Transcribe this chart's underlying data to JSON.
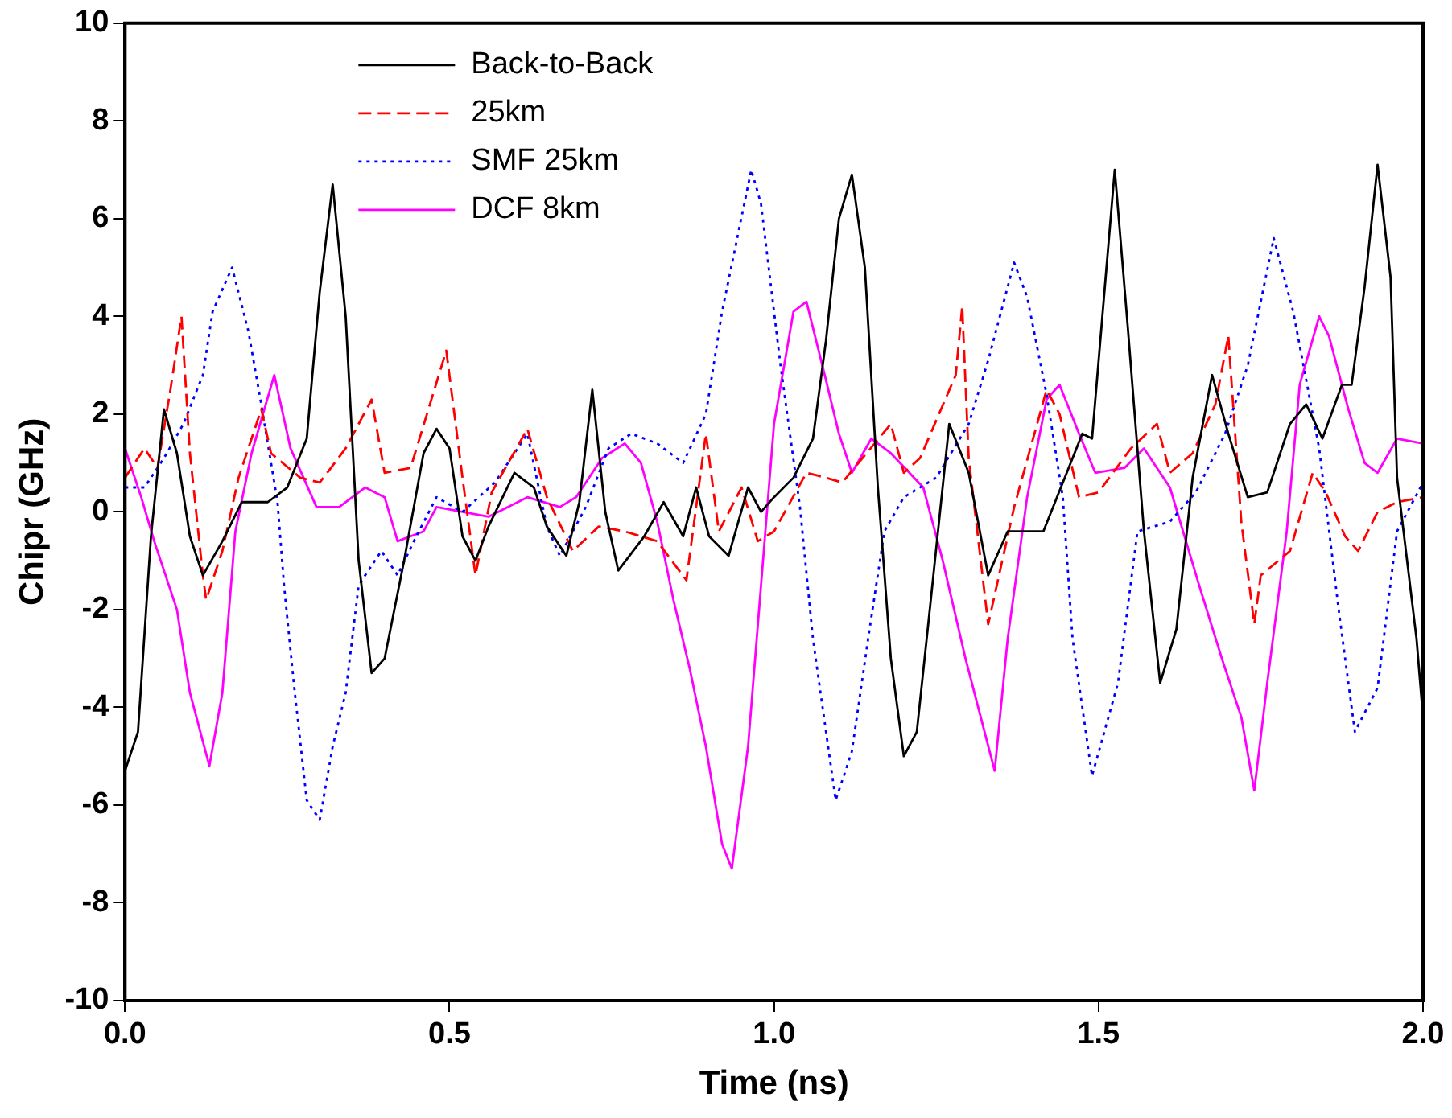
{
  "chart_data": {
    "type": "line",
    "xlabel": "Time (ns)",
    "ylabel": "Chipr (GHz)",
    "xlim": [
      0,
      2
    ],
    "ylim": [
      -10,
      10
    ],
    "xticks": [
      {
        "value": 0,
        "label": "0.0"
      },
      {
        "value": 0.5,
        "label": "0.5"
      },
      {
        "value": 1,
        "label": "1.0"
      },
      {
        "value": 1.5,
        "label": "1.5"
      },
      {
        "value": 2,
        "label": "2.0"
      }
    ],
    "yticks": [
      -10,
      -8,
      -6,
      -4,
      -2,
      0,
      2,
      4,
      6,
      8,
      10
    ],
    "grid": false,
    "legend": "top left",
    "marker": "none",
    "series": [
      {
        "name": "Back-to-Back",
        "color": "#000000",
        "line_style": "solid",
        "x": [
          0,
          0.02,
          0.04,
          0.06,
          0.08,
          0.1,
          0.12,
          0.15,
          0.18,
          0.22,
          0.25,
          0.28,
          0.3,
          0.32,
          0.34,
          0.36,
          0.38,
          0.4,
          0.43,
          0.46,
          0.48,
          0.5,
          0.52,
          0.54,
          0.56,
          0.6,
          0.63,
          0.65,
          0.68,
          0.7,
          0.72,
          0.74,
          0.76,
          0.8,
          0.83,
          0.86,
          0.88,
          0.9,
          0.93,
          0.96,
          0.98,
          1.0,
          1.03,
          1.06,
          1.08,
          1.1,
          1.12,
          1.14,
          1.16,
          1.18,
          1.2,
          1.22,
          1.24,
          1.27,
          1.3,
          1.33,
          1.36,
          1.415,
          1.475,
          1.49,
          1.525,
          1.545,
          1.57,
          1.595,
          1.62,
          1.645,
          1.675,
          1.7,
          1.73,
          1.76,
          1.795,
          1.82,
          1.845,
          1.875,
          1.89,
          1.91,
          1.93,
          1.95,
          1.96,
          1.99,
          2.0
        ],
        "values": [
          -5.3,
          -4.5,
          -0.5,
          2.1,
          1.2,
          -0.5,
          -1.3,
          -0.6,
          0.2,
          0.2,
          0.5,
          1.5,
          4.5,
          6.7,
          4,
          -1,
          -3.3,
          -3,
          -1,
          1.2,
          1.7,
          1.3,
          -0.5,
          -1,
          -0.3,
          0.8,
          0.5,
          -0.3,
          -0.9,
          0.2,
          2.5,
          0,
          -1.2,
          -0.5,
          0.2,
          -0.5,
          0.5,
          -0.5,
          -0.9,
          0.5,
          0,
          0.3,
          0.7,
          1.5,
          3.5,
          6,
          6.9,
          5,
          0.5,
          -3,
          -5,
          -4.5,
          -2,
          1.8,
          0.8,
          -1.3,
          -0.4,
          -0.4,
          1.6,
          1.5,
          7,
          3.8,
          -0.4,
          -3.5,
          -2.4,
          0.7,
          2.8,
          1.6,
          0.3,
          0.4,
          1.8,
          2.2,
          1.5,
          2.6,
          2.6,
          4.6,
          7.1,
          4.8,
          0.7,
          -2.6,
          -4.2
        ]
      },
      {
        "name": "25km",
        "color": "#ff0000",
        "line_style": "dashed",
        "x": [
          0,
          0.03,
          0.05,
          0.07,
          0.087,
          0.1,
          0.12,
          0.125,
          0.15,
          0.175,
          0.21,
          0.225,
          0.27,
          0.3,
          0.34,
          0.38,
          0.4,
          0.44,
          0.495,
          0.52,
          0.54,
          0.565,
          0.62,
          0.65,
          0.69,
          0.73,
          0.77,
          0.82,
          0.865,
          0.895,
          0.915,
          0.95,
          0.975,
          1.0,
          1.05,
          1.08,
          1.105,
          1.18,
          1.2,
          1.225,
          1.28,
          1.29,
          1.3,
          1.33,
          1.37,
          1.42,
          1.44,
          1.47,
          1.5,
          1.55,
          1.59,
          1.61,
          1.645,
          1.68,
          1.7,
          1.72,
          1.74,
          1.75,
          1.795,
          1.83,
          1.85,
          1.88,
          1.9,
          1.93,
          1.96,
          2.0
        ],
        "values": [
          0.7,
          1.3,
          0.9,
          2.5,
          4,
          1.2,
          -1.3,
          -1.8,
          -0.8,
          0.7,
          2.1,
          1.2,
          0.7,
          0.6,
          1.3,
          2.3,
          0.8,
          0.9,
          3.3,
          0.7,
          -1.3,
          0.4,
          1.7,
          0.3,
          -0.8,
          -0.3,
          -0.4,
          -0.6,
          -1.4,
          1.6,
          -0.4,
          0.5,
          -0.6,
          -0.4,
          0.8,
          0.7,
          0.6,
          1.8,
          0.8,
          1.1,
          2.8,
          4.2,
          1.1,
          -2.3,
          0.1,
          2.5,
          2,
          0.3,
          0.4,
          1.3,
          1.8,
          0.8,
          1.2,
          2.2,
          3.6,
          -0.2,
          -2.3,
          -1.3,
          -0.8,
          0.8,
          0.4,
          -0.5,
          -0.8,
          0,
          0.2,
          0.3
        ]
      },
      {
        "name": "SMF 25km",
        "color": "#0000ff",
        "line_style": "dotted",
        "x": [
          0,
          0.03,
          0.06,
          0.09,
          0.12,
          0.135,
          0.165,
          0.19,
          0.21,
          0.235,
          0.245,
          0.26,
          0.28,
          0.3,
          0.32,
          0.34,
          0.36,
          0.395,
          0.42,
          0.445,
          0.48,
          0.52,
          0.57,
          0.62,
          0.65,
          0.67,
          0.71,
          0.745,
          0.78,
          0.82,
          0.86,
          0.895,
          0.92,
          0.965,
          0.98,
          1.01,
          1.04,
          1.06,
          1.095,
          1.12,
          1.145,
          1.17,
          1.2,
          1.25,
          1.3,
          1.33,
          1.37,
          1.39,
          1.42,
          1.445,
          1.46,
          1.49,
          1.53,
          1.56,
          1.61,
          1.65,
          1.695,
          1.73,
          1.77,
          1.8,
          1.84,
          1.87,
          1.895,
          1.93,
          1.96,
          2.0
        ],
        "values": [
          0.5,
          0.5,
          1.1,
          1.8,
          2.8,
          4.1,
          5,
          3.7,
          2.2,
          0.2,
          -1.5,
          -3.5,
          -5.9,
          -6.3,
          -4.8,
          -3.7,
          -1.5,
          -0.8,
          -1.3,
          -0.6,
          0.3,
          0,
          0.6,
          1.6,
          -0.3,
          -0.9,
          0.1,
          1.3,
          1.6,
          1.4,
          1,
          2,
          4.1,
          7,
          6.3,
          3,
          0.1,
          -2.6,
          -5.9,
          -4.9,
          -2.6,
          -0.4,
          0.3,
          0.7,
          1.8,
          3.1,
          5.1,
          4.4,
          2.4,
          0.3,
          -2.6,
          -5.4,
          -3.5,
          -0.4,
          -0.2,
          0.4,
          1.6,
          3,
          5.6,
          4.1,
          1.3,
          -2,
          -4.5,
          -3.6,
          -0.4,
          0.6
        ]
      },
      {
        "name": "DCF 8km",
        "color": "#ff00ff",
        "line_style": "solid",
        "x": [
          0,
          0.025,
          0.045,
          0.08,
          0.1,
          0.13,
          0.15,
          0.17,
          0.195,
          0.23,
          0.255,
          0.295,
          0.33,
          0.37,
          0.4,
          0.42,
          0.46,
          0.48,
          0.52,
          0.56,
          0.62,
          0.67,
          0.695,
          0.735,
          0.77,
          0.795,
          0.82,
          0.845,
          0.87,
          0.895,
          0.92,
          0.935,
          0.96,
          0.98,
          1.0,
          1.03,
          1.05,
          1.08,
          1.1,
          1.12,
          1.15,
          1.18,
          1.23,
          1.26,
          1.295,
          1.34,
          1.36,
          1.39,
          1.42,
          1.44,
          1.47,
          1.495,
          1.54,
          1.57,
          1.61,
          1.655,
          1.69,
          1.72,
          1.74,
          1.76,
          1.79,
          1.81,
          1.84,
          1.855,
          1.885,
          1.91,
          1.93,
          1.96,
          2.0
        ],
        "values": [
          1.3,
          0.3,
          -0.6,
          -2,
          -3.7,
          -5.2,
          -3.7,
          -0.4,
          1.2,
          2.8,
          1.3,
          0.1,
          0.1,
          0.5,
          0.3,
          -0.6,
          -0.4,
          0.1,
          0,
          -0.1,
          0.3,
          0.1,
          0.3,
          1.1,
          1.4,
          1,
          -0.2,
          -1.8,
          -3.2,
          -4.8,
          -6.8,
          -7.3,
          -4.8,
          -1.5,
          1.8,
          4.1,
          4.3,
          2.7,
          1.6,
          0.8,
          1.5,
          1.2,
          0.5,
          -1,
          -3,
          -5.3,
          -2.6,
          0.3,
          2.3,
          2.6,
          1.6,
          0.8,
          0.9,
          1.3,
          0.5,
          -1.5,
          -3,
          -4.2,
          -5.7,
          -3.5,
          -0.4,
          2.6,
          4,
          3.6,
          2.1,
          1,
          0.8,
          1.5,
          1.4
        ]
      }
    ]
  }
}
